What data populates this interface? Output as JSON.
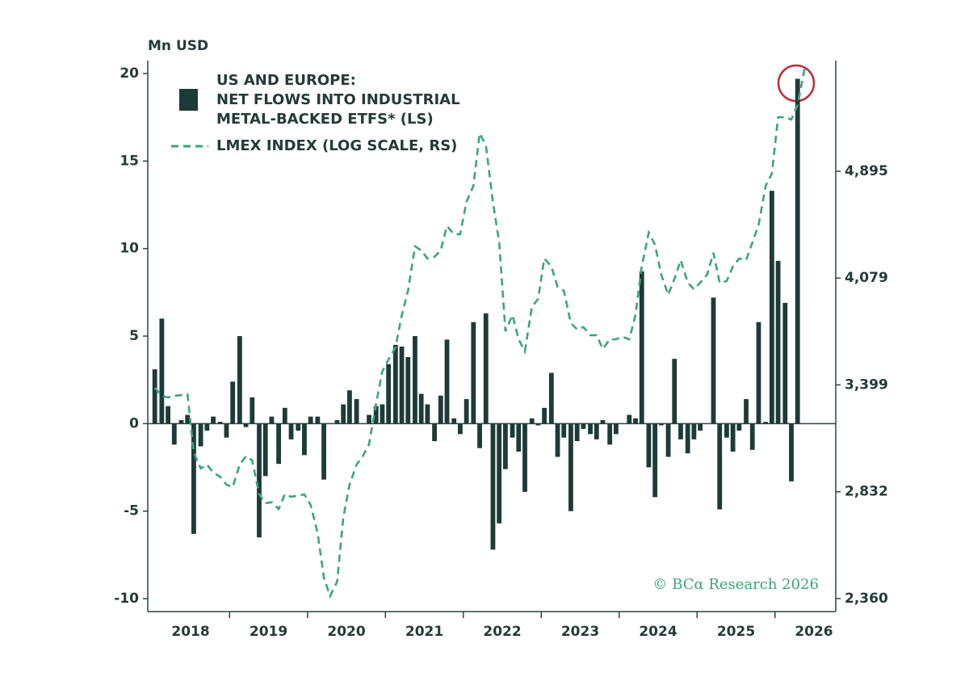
{
  "chart_data": {
    "type": "bar-line",
    "y_label": "Mn USD",
    "source": "© BCα Research 2026",
    "x": [
      2018.04,
      2018.13,
      2018.21,
      2018.29,
      2018.38,
      2018.46,
      2018.54,
      2018.63,
      2018.71,
      2018.79,
      2018.88,
      2018.96,
      2019.04,
      2019.13,
      2019.21,
      2019.29,
      2019.38,
      2019.46,
      2019.54,
      2019.63,
      2019.71,
      2019.79,
      2019.88,
      2019.96,
      2020.04,
      2020.13,
      2020.21,
      2020.29,
      2020.38,
      2020.46,
      2020.54,
      2020.63,
      2020.71,
      2020.79,
      2020.88,
      2020.96,
      2021.04,
      2021.13,
      2021.21,
      2021.29,
      2021.38,
      2021.46,
      2021.54,
      2021.63,
      2021.71,
      2021.79,
      2021.88,
      2021.96,
      2022.04,
      2022.13,
      2022.21,
      2022.29,
      2022.38,
      2022.46,
      2022.54,
      2022.63,
      2022.71,
      2022.79,
      2022.88,
      2022.96,
      2023.04,
      2023.13,
      2023.21,
      2023.29,
      2023.38,
      2023.46,
      2023.54,
      2023.63,
      2023.71,
      2023.79,
      2023.88,
      2023.96,
      2024.04,
      2024.13,
      2024.21,
      2024.29,
      2024.38,
      2024.46,
      2024.54,
      2024.63,
      2024.71,
      2024.79,
      2024.88,
      2024.96,
      2025.04,
      2025.13,
      2025.21,
      2025.29,
      2025.38,
      2025.46,
      2025.54,
      2025.63,
      2025.71,
      2025.79,
      2025.88,
      2025.96,
      2026.04,
      2026.13,
      2026.21,
      2026.29
    ],
    "series": [
      {
        "name": [
          "US AND EUROPE:",
          "NET FLOWS INTO INDUSTRIAL",
          "METAL-BACKED ETFS* (LS)"
        ],
        "color": "#1d3b38",
        "kind": "bar",
        "values": [
          3.1,
          6.0,
          1.0,
          -1.2,
          0.2,
          0.5,
          -6.3,
          -1.3,
          -0.4,
          0.4,
          0.1,
          -0.8,
          2.4,
          5.0,
          -0.2,
          1.5,
          -6.5,
          -3.0,
          0.4,
          -2.3,
          0.9,
          -0.9,
          -0.4,
          -1.8,
          0.4,
          0.4,
          -3.2,
          0.0,
          0.2,
          1.1,
          1.9,
          1.4,
          0.0,
          0.5,
          1.0,
          1.1,
          3.4,
          4.5,
          4.4,
          3.8,
          5.0,
          1.7,
          1.1,
          -1.0,
          1.6,
          4.8,
          0.3,
          -0.6,
          1.4,
          5.8,
          -1.4,
          6.3,
          -7.2,
          -5.7,
          -2.6,
          -0.8,
          -1.6,
          -3.9,
          0.3,
          -0.1,
          0.9,
          2.9,
          -1.9,
          -0.8,
          -5.0,
          -1.0,
          -0.3,
          -0.6,
          -0.9,
          0.2,
          -1.2,
          -0.6,
          0.0,
          0.5,
          0.3,
          8.7,
          -2.5,
          -4.2,
          -0.1,
          -1.9,
          3.7,
          -0.9,
          -1.7,
          -0.9,
          -0.4,
          0.0,
          7.2,
          -4.9,
          -0.8,
          -1.6,
          -0.4,
          1.4,
          -1.5,
          5.8,
          0.1,
          13.3,
          9.3,
          6.9,
          -3.3,
          19.7
        ]
      },
      {
        "name": "LMEX INDEX (LOG SCALE,  RS)",
        "color": "#3aa57a",
        "kind": "line",
        "axis": "y2",
        "dashed": true,
        "x": [
          2018.04,
          2018.13,
          2018.21,
          2018.29,
          2018.38,
          2018.46,
          2018.54,
          2018.63,
          2018.71,
          2018.79,
          2018.88,
          2018.96,
          2019.04,
          2019.13,
          2019.21,
          2019.29,
          2019.38,
          2019.46,
          2019.54,
          2019.63,
          2019.71,
          2019.79,
          2019.88,
          2019.96,
          2020.04,
          2020.13,
          2020.21,
          2020.29,
          2020.38,
          2020.46,
          2020.54,
          2020.63,
          2020.71,
          2020.79,
          2020.88,
          2020.96,
          2021.04,
          2021.13,
          2021.21,
          2021.29,
          2021.38,
          2021.46,
          2021.54,
          2021.63,
          2021.71,
          2021.79,
          2021.88,
          2021.96,
          2022.04,
          2022.13,
          2022.21,
          2022.29,
          2022.38,
          2022.46,
          2022.54,
          2022.63,
          2022.71,
          2022.79,
          2022.88,
          2022.96,
          2023.04,
          2023.13,
          2023.21,
          2023.29,
          2023.38,
          2023.46,
          2023.54,
          2023.63,
          2023.71,
          2023.79,
          2023.88,
          2023.96,
          2024.04,
          2024.13,
          2024.21,
          2024.29,
          2024.38,
          2024.46,
          2024.54,
          2024.63,
          2024.71,
          2024.79,
          2024.88,
          2024.96,
          2025.04,
          2025.13,
          2025.21,
          2025.29,
          2025.38,
          2025.46,
          2025.54,
          2025.63,
          2025.71,
          2025.79,
          2025.88,
          2025.96,
          2026.04,
          2026.13,
          2026.21,
          2026.29,
          2026.38
        ],
        "values": [
          3382,
          3336,
          3327,
          3336,
          3340,
          3345,
          3029,
          2947,
          2967,
          2926,
          2906,
          2866,
          2855,
          2967,
          3009,
          2988,
          2820,
          2777,
          2782,
          2750,
          2820,
          2808,
          2813,
          2820,
          2769,
          2639,
          2446,
          2370,
          2429,
          2712,
          2866,
          2967,
          3009,
          3071,
          3290,
          3477,
          3550,
          3624,
          3829,
          3991,
          4306,
          4276,
          4217,
          4230,
          4276,
          4457,
          4396,
          4396,
          4645,
          4775,
          5223,
          5116,
          4645,
          4335,
          3725,
          3829,
          3674,
          3599,
          3883,
          3937,
          4217,
          4160,
          4019,
          3991,
          3777,
          3736,
          3751,
          3700,
          3700,
          3614,
          3674,
          3674,
          3690,
          3674,
          3829,
          4160,
          4408,
          4318,
          4103,
          3964,
          4075,
          4206,
          4047,
          4002,
          4047,
          4103,
          4259,
          4047,
          4058,
          4160,
          4217,
          4206,
          4335,
          4469,
          4775,
          4875,
          5369,
          5369,
          5347,
          5481,
          5832
        ]
      }
    ],
    "xlim": [
      2017.95,
      2026.78
    ],
    "xticks": [
      {
        "value": 2018.5,
        "label": "2018"
      },
      {
        "value": 2019.5,
        "label": "2019"
      },
      {
        "value": 2020.5,
        "label": "2020"
      },
      {
        "value": 2021.5,
        "label": "2021"
      },
      {
        "value": 2022.5,
        "label": "2022"
      },
      {
        "value": 2023.5,
        "label": "2023"
      },
      {
        "value": 2024.5,
        "label": "2024"
      },
      {
        "value": 2025.5,
        "label": "2025"
      },
      {
        "value": 2026.5,
        "label": "2026"
      }
    ],
    "ylim": [
      -10.74,
      20.74
    ],
    "yticks": [
      -10,
      -5,
      0,
      5,
      10,
      15,
      20
    ],
    "y2lim": [
      2308,
      5913
    ],
    "y2ticks": [
      {
        "value": 2360,
        "label": "2,360"
      },
      {
        "value": 2832,
        "label": "2,832"
      },
      {
        "value": 3399,
        "label": "3,399"
      },
      {
        "value": 4079,
        "label": "4,079"
      },
      {
        "value": 4895,
        "label": "4,895"
      }
    ],
    "y2log": true
  }
}
